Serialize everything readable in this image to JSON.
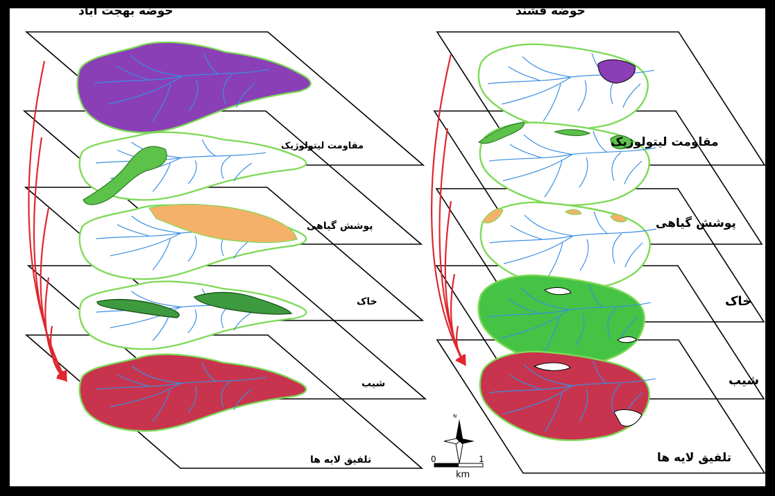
{
  "panels": {
    "left": {
      "title": "حوضه بهجت آباد",
      "layers": [
        "مقاومت لیتولوژیک",
        "پوشش گیاهی",
        "خاک",
        "شیب",
        "تلفیق لایه ها"
      ]
    },
    "right": {
      "title": "حوضه فشند",
      "layers": [
        "مقاومت لیتولوژیک",
        "پوشش گیاهی",
        "خاک",
        "شیب",
        "تلفیق لایه ها"
      ]
    }
  },
  "scale_bar": {
    "start": "0",
    "end": "1",
    "unit": "km"
  },
  "north_arrow": {
    "label": "N"
  },
  "colors": {
    "frame": "#000000",
    "background": "#ffffff",
    "boundary": "#7ed957",
    "stream": "#3a8fe0",
    "lithology": "#8a3fb7",
    "vegetation_green": "#5cc24a",
    "vegetation_orange": "#f5b16a",
    "soil": "#45c345",
    "slope": "#c8344e",
    "arrow": "#e0262e"
  },
  "icons": [
    "north-arrow-icon",
    "scale-bar-icon",
    "flow-arrow-icon"
  ]
}
